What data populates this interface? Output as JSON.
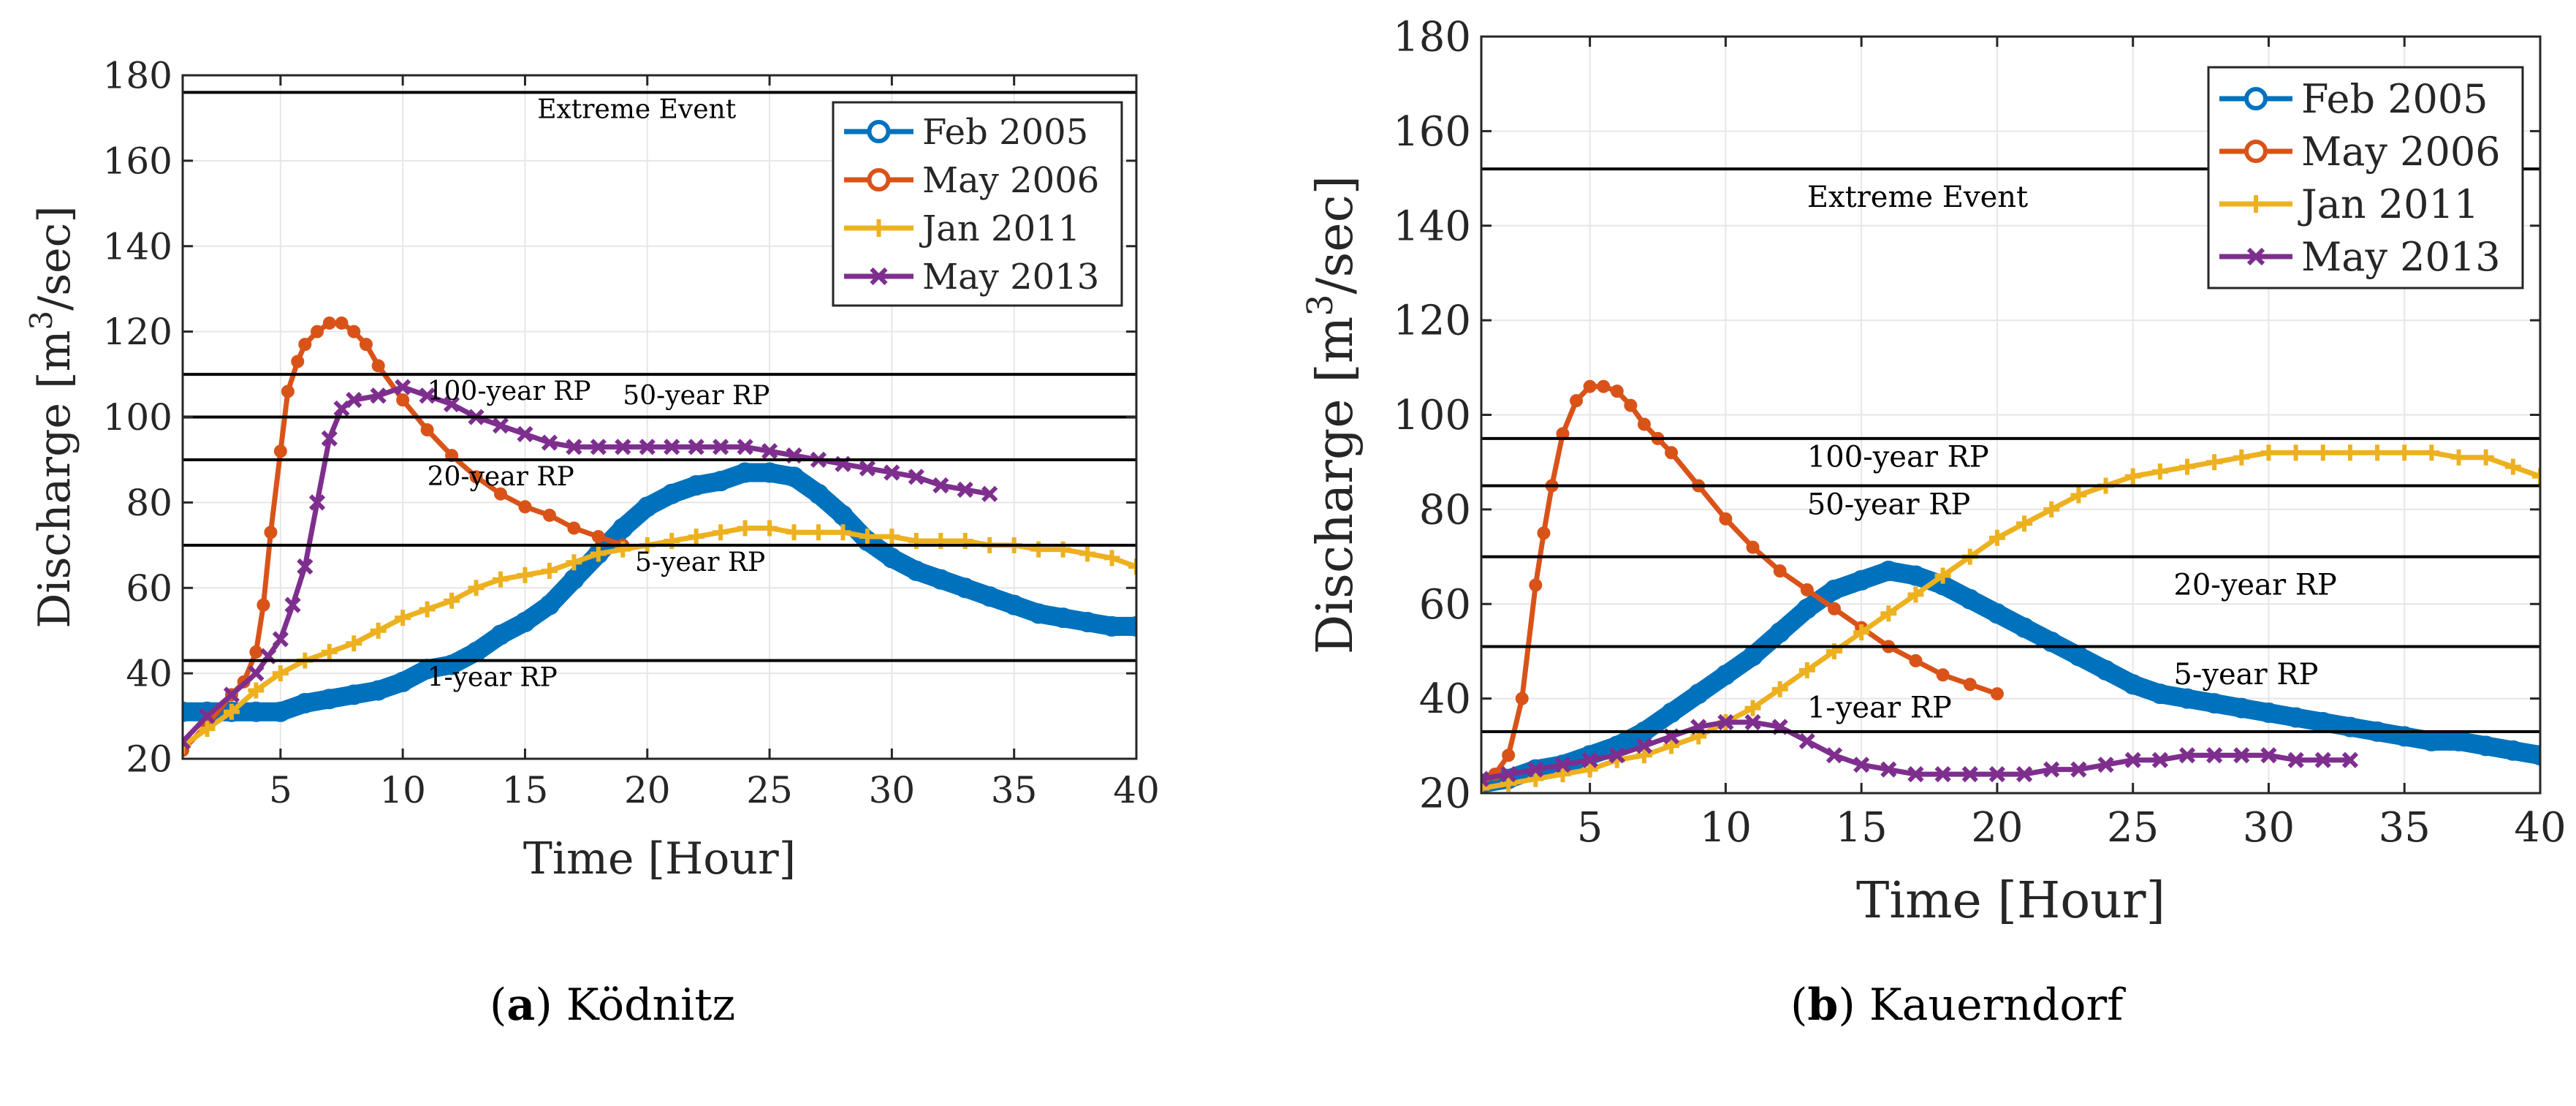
{
  "chart_data": [
    {
      "type": "line",
      "panel": "a",
      "caption_letter": "a",
      "caption_name": "Ködnitz",
      "xlabel": "Time [Hour]",
      "ylabel": "Discharge [m",
      "ylabel_sup": "3",
      "ylabel_tail": "/sec]",
      "xlim": [
        1,
        40
      ],
      "ylim": [
        20,
        180
      ],
      "xticks": [
        "5",
        "10",
        "15",
        "20",
        "25",
        "30",
        "35",
        "40"
      ],
      "yticks": [
        "20",
        "40",
        "60",
        "80",
        "100",
        "120",
        "140",
        "160",
        "180"
      ],
      "grid": true,
      "legend_position": "top-right",
      "thresholds": [
        {
          "label": "Extreme Event",
          "y": 176,
          "label_x": 15.5,
          "label_y": 170
        },
        {
          "label": "100-year RP",
          "y": 110,
          "label_x": 11,
          "label_y": 104
        },
        {
          "label": "50-year RP",
          "y": 100,
          "label_x": 19,
          "label_y": 103
        },
        {
          "label": "20-year RP",
          "y": 90,
          "label_x": 11,
          "label_y": 84
        },
        {
          "label": "5-year RP",
          "y": 70,
          "label_x": 19.5,
          "label_y": 64
        },
        {
          "label": "1-year RP",
          "y": 43,
          "label_x": 11,
          "label_y": 37
        }
      ],
      "series": [
        {
          "name": "Feb 2005",
          "color": "#0072BD",
          "marker": "o",
          "x": [
            1,
            2,
            3,
            4,
            5,
            6,
            7,
            8,
            9,
            10,
            11,
            12,
            13,
            14,
            15,
            16,
            17,
            18,
            19,
            20,
            21,
            22,
            23,
            24,
            25,
            26,
            27,
            28,
            29,
            30,
            31,
            32,
            33,
            34,
            35,
            36,
            37,
            38,
            39,
            40
          ],
          "y": [
            31,
            31,
            31,
            31,
            31,
            33,
            34,
            35,
            36,
            38,
            41,
            42,
            45,
            49,
            52,
            56,
            62,
            68,
            74,
            79,
            82,
            84,
            85,
            87,
            87,
            86,
            82,
            77,
            71,
            67,
            64,
            62,
            60,
            58,
            56,
            54,
            53,
            52,
            51,
            51
          ]
        },
        {
          "name": "May 2006",
          "color": "#D95319",
          "marker": "o",
          "x": [
            1,
            2,
            3,
            3.5,
            4,
            4.3,
            4.6,
            5,
            5.3,
            5.7,
            6,
            6.5,
            7,
            7.5,
            8,
            8.5,
            9,
            10,
            11,
            12,
            13,
            14,
            15,
            16,
            17,
            18,
            19
          ],
          "y": [
            22,
            28,
            35,
            38,
            45,
            56,
            73,
            92,
            106,
            113,
            117,
            120,
            122,
            122,
            120,
            117,
            112,
            104,
            97,
            91,
            86,
            82,
            79,
            77,
            74,
            72,
            70
          ]
        },
        {
          "name": "Jan 2011",
          "color": "#EDB120",
          "marker": "+",
          "x": [
            1,
            2,
            3,
            4,
            5,
            6,
            7,
            8,
            9,
            10,
            11,
            12,
            13,
            14,
            15,
            16,
            17,
            18,
            19,
            20,
            21,
            22,
            23,
            24,
            25,
            26,
            27,
            28,
            29,
            30,
            31,
            32,
            33,
            34,
            35,
            36,
            37,
            38,
            39,
            40
          ],
          "y": [
            23,
            27,
            31,
            36,
            40,
            43,
            45,
            47,
            50,
            53,
            55,
            57,
            60,
            62,
            63,
            64,
            66,
            68,
            69,
            70,
            71,
            72,
            73,
            74,
            74,
            73,
            73,
            73,
            72,
            72,
            71,
            71,
            71,
            70,
            70,
            69,
            69,
            68,
            67,
            65
          ]
        },
        {
          "name": "May 2013",
          "color": "#7E2F8E",
          "marker": "x",
          "x": [
            1,
            2,
            3,
            4,
            4.5,
            5,
            5.5,
            6,
            6.5,
            7,
            7.5,
            8,
            9,
            10,
            11,
            12,
            13,
            14,
            15,
            16,
            17,
            18,
            19,
            20,
            21,
            22,
            23,
            24,
            25,
            26,
            27,
            28,
            29,
            30,
            31,
            32,
            33,
            34
          ],
          "y": [
            24,
            30,
            35,
            40,
            44,
            48,
            56,
            65,
            80,
            95,
            102,
            104,
            105,
            107,
            105,
            103,
            100,
            98,
            96,
            94,
            93,
            93,
            93,
            93,
            93,
            93,
            93,
            93,
            92,
            91,
            90,
            89,
            88,
            87,
            86,
            84,
            83,
            82
          ]
        }
      ]
    },
    {
      "type": "line",
      "panel": "b",
      "caption_letter": "b",
      "caption_name": "Kauerndorf",
      "xlabel": "Time [Hour]",
      "ylabel": "Discharge [m",
      "ylabel_sup": "3",
      "ylabel_tail": "/sec]",
      "xlim": [
        1,
        40
      ],
      "ylim": [
        20,
        180
      ],
      "xticks": [
        "5",
        "10",
        "15",
        "20",
        "25",
        "30",
        "35",
        "40"
      ],
      "yticks": [
        "20",
        "40",
        "60",
        "80",
        "100",
        "120",
        "140",
        "160",
        "180"
      ],
      "grid": true,
      "legend_position": "top-right",
      "thresholds": [
        {
          "label": "Extreme Event",
          "y": 152,
          "label_x": 13,
          "label_y": 144
        },
        {
          "label": "100-year RP",
          "y": 95,
          "label_x": 13,
          "label_y": 89
        },
        {
          "label": "50-year RP",
          "y": 85,
          "label_x": 13,
          "label_y": 79
        },
        {
          "label": "20-year RP",
          "y": 70,
          "label_x": 26.5,
          "label_y": 62
        },
        {
          "label": "5-year RP",
          "y": 51,
          "label_x": 26.5,
          "label_y": 43
        },
        {
          "label": "1-year RP",
          "y": 33,
          "label_x": 13,
          "label_y": 36
        }
      ],
      "series": [
        {
          "name": "Feb 2005",
          "color": "#0072BD",
          "marker": "o",
          "x": [
            1,
            2,
            3,
            4,
            5,
            6,
            7,
            8,
            9,
            10,
            11,
            12,
            13,
            14,
            15,
            16,
            17,
            18,
            19,
            20,
            21,
            22,
            23,
            24,
            25,
            26,
            27,
            28,
            29,
            30,
            31,
            32,
            33,
            34,
            35,
            36,
            37,
            38,
            39,
            40
          ],
          "y": [
            22,
            23,
            25,
            26,
            28,
            30,
            33,
            37,
            41,
            45,
            49,
            54,
            59,
            63,
            65,
            67,
            66,
            64,
            61,
            58,
            55,
            52,
            49,
            46,
            43,
            41,
            40,
            39,
            38,
            37,
            36,
            35,
            34,
            33,
            32,
            31,
            31,
            30,
            29,
            28
          ]
        },
        {
          "name": "May 2006",
          "color": "#D95319",
          "marker": "o",
          "x": [
            1,
            1.5,
            2,
            2.5,
            3,
            3.3,
            3.6,
            4,
            4.5,
            5,
            5.5,
            6,
            6.5,
            7,
            7.5,
            8,
            9,
            10,
            11,
            12,
            13,
            14,
            15,
            16,
            17,
            18,
            19,
            20
          ],
          "y": [
            22,
            24,
            28,
            40,
            64,
            75,
            85,
            96,
            103,
            106,
            106,
            105,
            102,
            98,
            95,
            92,
            85,
            78,
            72,
            67,
            63,
            59,
            55,
            51,
            48,
            45,
            43,
            41
          ]
        },
        {
          "name": "Jan 2011",
          "color": "#EDB120",
          "marker": "+",
          "x": [
            1,
            2,
            3,
            4,
            5,
            6,
            7,
            8,
            9,
            10,
            11,
            12,
            13,
            14,
            15,
            16,
            17,
            18,
            19,
            20,
            21,
            22,
            23,
            24,
            25,
            26,
            27,
            28,
            29,
            30,
            31,
            32,
            33,
            34,
            35,
            36,
            37,
            38,
            39,
            40
          ],
          "y": [
            21,
            22,
            23,
            24,
            25,
            27,
            28,
            30,
            32,
            35,
            38,
            42,
            46,
            50,
            54,
            58,
            62,
            66,
            70,
            74,
            77,
            80,
            83,
            85,
            87,
            88,
            89,
            90,
            91,
            92,
            92,
            92,
            92,
            92,
            92,
            92,
            91,
            91,
            89,
            87
          ]
        },
        {
          "name": "May 2013",
          "color": "#7E2F8E",
          "marker": "x",
          "x": [
            1,
            2,
            3,
            4,
            5,
            6,
            7,
            8,
            9,
            10,
            11,
            12,
            13,
            14,
            15,
            16,
            17,
            18,
            19,
            20,
            21,
            22,
            23,
            24,
            25,
            26,
            27,
            28,
            29,
            30,
            31,
            32,
            33
          ],
          "y": [
            23,
            24,
            25,
            26,
            27,
            28,
            30,
            32,
            34,
            35,
            35,
            34,
            31,
            28,
            26,
            25,
            24,
            24,
            24,
            24,
            24,
            25,
            25,
            26,
            27,
            27,
            28,
            28,
            28,
            28,
            27,
            27,
            27
          ]
        }
      ]
    }
  ]
}
